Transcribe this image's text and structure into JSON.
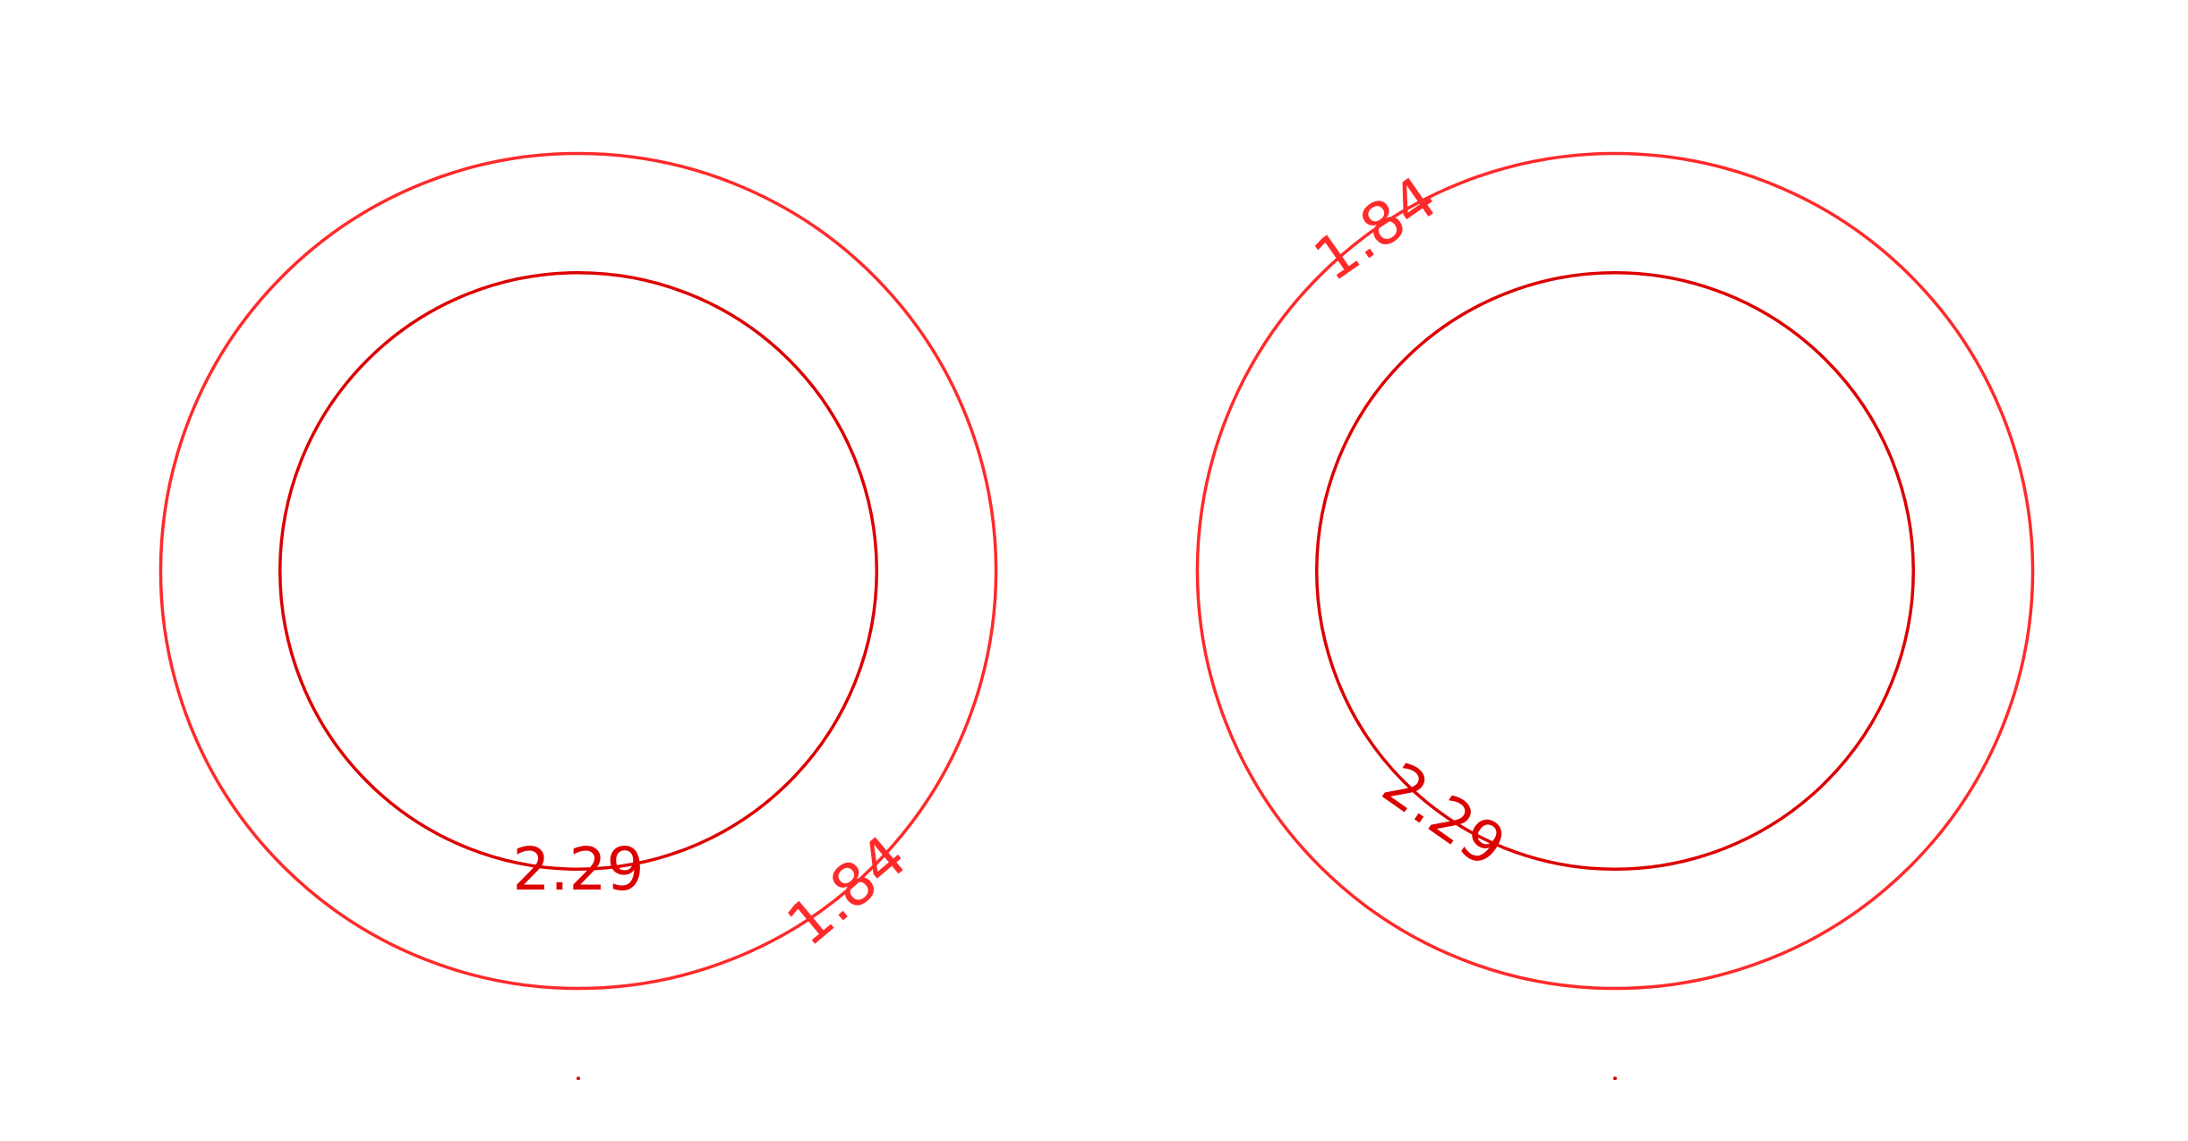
{
  "chart_data": [
    {
      "type": "contour",
      "title": "",
      "xlabel": "",
      "ylabel": "",
      "levels": [
        {
          "value": 1.84,
          "label": "1.84",
          "color": "#ff2a2a",
          "radius": 3.5,
          "label_angle_deg": 50
        },
        {
          "value": 2.29,
          "label": "2.29",
          "color": "#dd0000",
          "radius": 2.5,
          "label_angle_deg": 90
        }
      ],
      "center_marker": {
        "color": "#dd0000"
      }
    },
    {
      "type": "contour",
      "title": "",
      "xlabel": "",
      "ylabel": "",
      "levels": [
        {
          "value": 1.84,
          "label": "1.84",
          "color": "#ff2a2a",
          "radius": 3.5,
          "label_angle_deg": 235
        },
        {
          "value": 2.29,
          "label": "2.29",
          "color": "#dd0000",
          "radius": 2.5,
          "label_angle_deg": 125
        }
      ],
      "center_marker": {
        "color": "#dd0000"
      }
    }
  ]
}
